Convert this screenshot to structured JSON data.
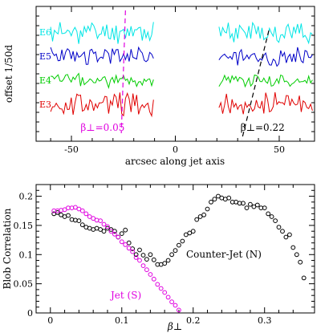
{
  "chart_data": [
    {
      "type": "line",
      "xlabel": "arcsec along jet axis",
      "ylabel": "offset 1/50d",
      "xlim": [
        -67,
        67
      ],
      "x_ticks": [
        -50,
        0,
        50
      ],
      "series": [
        {
          "name": "E6",
          "color": "#00e5e5",
          "seed": 11,
          "amplitude": 0.9,
          "level": 3
        },
        {
          "name": "E5",
          "color": "#0000c8",
          "seed": 23,
          "amplitude": 0.75,
          "level": 2
        },
        {
          "name": "E4",
          "color": "#00cc00",
          "seed": 37,
          "amplitude": 0.55,
          "level": 1
        },
        {
          "name": "E3",
          "color": "#e00000",
          "seed": 53,
          "amplitude": 1.0,
          "level": 0
        }
      ],
      "segments": [
        [
          -60,
          -10
        ],
        [
          21,
          66
        ]
      ],
      "annotations": [
        {
          "label": "β⊥=0.05",
          "color": "#e000e0",
          "line_x": [
            -26,
            -24
          ]
        },
        {
          "label": "β⊥=0.22",
          "color": "#000000",
          "line_x": [
            32,
            45
          ]
        }
      ]
    },
    {
      "type": "scatter",
      "xlabel": "β⊥",
      "ylabel": "Blob Correlation",
      "xlim": [
        -0.02,
        0.37
      ],
      "ylim": [
        0,
        0.22
      ],
      "x_ticks": [
        0,
        0.1,
        0.2,
        0.3
      ],
      "x_tick_labels": [
        "0",
        "0.1",
        "0.2",
        "0.3"
      ],
      "y_ticks": [
        0,
        0.05,
        0.1,
        0.15,
        0.2
      ],
      "y_tick_labels": [
        "0",
        "0.05",
        "0.1",
        "0.15",
        "0.2"
      ],
      "series": [
        {
          "name": "Counter-Jet (N)",
          "color": "#000000",
          "x": [
            0.005,
            0.01,
            0.015,
            0.02,
            0.025,
            0.03,
            0.035,
            0.04,
            0.045,
            0.05,
            0.055,
            0.06,
            0.065,
            0.07,
            0.075,
            0.08,
            0.085,
            0.09,
            0.095,
            0.1,
            0.105,
            0.11,
            0.115,
            0.12,
            0.125,
            0.13,
            0.135,
            0.14,
            0.145,
            0.15,
            0.155,
            0.16,
            0.165,
            0.17,
            0.175,
            0.18,
            0.185,
            0.19,
            0.195,
            0.2,
            0.205,
            0.21,
            0.215,
            0.22,
            0.225,
            0.23,
            0.235,
            0.24,
            0.245,
            0.25,
            0.255,
            0.26,
            0.265,
            0.27,
            0.275,
            0.28,
            0.285,
            0.29,
            0.295,
            0.3,
            0.305,
            0.31,
            0.315,
            0.32,
            0.325,
            0.33,
            0.335,
            0.34,
            0.345,
            0.35,
            0.355
          ],
          "y": [
            0.17,
            0.172,
            0.168,
            0.165,
            0.167,
            0.16,
            0.159,
            0.158,
            0.151,
            0.147,
            0.145,
            0.143,
            0.145,
            0.143,
            0.14,
            0.145,
            0.143,
            0.14,
            0.13,
            0.136,
            0.142,
            0.12,
            0.11,
            0.1,
            0.108,
            0.099,
            0.092,
            0.1,
            0.091,
            0.083,
            0.083,
            0.085,
            0.09,
            0.1,
            0.107,
            0.116,
            0.123,
            0.134,
            0.137,
            0.14,
            0.16,
            0.165,
            0.168,
            0.178,
            0.19,
            0.195,
            0.2,
            0.197,
            0.195,
            0.197,
            0.19,
            0.19,
            0.188,
            0.188,
            0.18,
            0.186,
            0.182,
            0.185,
            0.18,
            0.18,
            0.17,
            0.165,
            0.158,
            0.147,
            0.14,
            0.13,
            0.134,
            0.112,
            0.1,
            0.087,
            0.06
          ]
        },
        {
          "name": "Jet (S)",
          "color": "#e000e0",
          "x": [
            0.005,
            0.01,
            0.015,
            0.02,
            0.025,
            0.03,
            0.035,
            0.04,
            0.045,
            0.05,
            0.055,
            0.06,
            0.065,
            0.07,
            0.075,
            0.08,
            0.085,
            0.09,
            0.095,
            0.1,
            0.105,
            0.11,
            0.115,
            0.12,
            0.125,
            0.13,
            0.135,
            0.14,
            0.145,
            0.15,
            0.155,
            0.16,
            0.165,
            0.17,
            0.175,
            0.18
          ],
          "y": [
            0.175,
            0.175,
            0.176,
            0.177,
            0.18,
            0.18,
            0.181,
            0.178,
            0.175,
            0.17,
            0.165,
            0.162,
            0.159,
            0.158,
            0.152,
            0.148,
            0.14,
            0.135,
            0.13,
            0.122,
            0.117,
            0.111,
            0.105,
            0.095,
            0.09,
            0.081,
            0.074,
            0.066,
            0.058,
            0.049,
            0.042,
            0.035,
            0.027,
            0.019,
            0.013,
            0.005
          ]
        }
      ],
      "legend_labels": [
        "Counter-Jet (N)",
        "Jet (S)"
      ]
    }
  ]
}
